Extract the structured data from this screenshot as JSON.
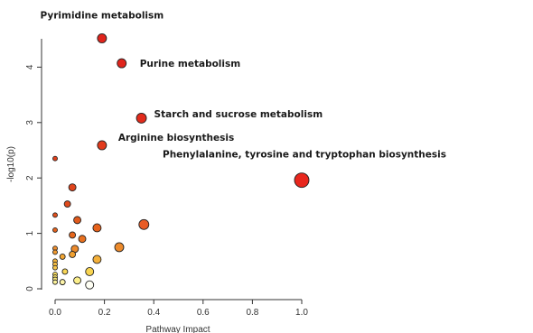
{
  "chart_data": {
    "type": "scatter",
    "title": "",
    "xlabel": "Pathway Impact",
    "ylabel": "-log10(p)",
    "xlim": [
      0,
      1
    ],
    "ylim": [
      0,
      4.5
    ],
    "x_ticks": [
      "0.0",
      "0.2",
      "0.4",
      "0.6",
      "0.8",
      "1.0"
    ],
    "y_ticks": [
      "0",
      "1",
      "2",
      "3",
      "4"
    ],
    "grid": false,
    "points": [
      {
        "x": 0.19,
        "y": 4.52,
        "size": 5,
        "color": "#e0241c",
        "label": "Pyrimidine metabolism"
      },
      {
        "x": 0.27,
        "y": 4.07,
        "size": 5,
        "color": "#e0241c",
        "label": "Purine metabolism"
      },
      {
        "x": 0.35,
        "y": 3.08,
        "size": 5.5,
        "color": "#e22b1c",
        "label": "Starch and sucrose metabolism"
      },
      {
        "x": 0.19,
        "y": 2.59,
        "size": 5,
        "color": "#e23a1c",
        "label": "Arginine biosynthesis"
      },
      {
        "x": 1.0,
        "y": 1.96,
        "size": 8,
        "color": "#e8261d",
        "label": "Phenylalanine, tyrosine and tryptophan biosynthesis"
      },
      {
        "x": 0.0,
        "y": 2.35,
        "size": 2.5,
        "color": "#e0401c",
        "label": ""
      },
      {
        "x": 0.07,
        "y": 1.83,
        "size": 4,
        "color": "#e0441c",
        "label": ""
      },
      {
        "x": 0.05,
        "y": 1.53,
        "size": 3.5,
        "color": "#e04a1c",
        "label": ""
      },
      {
        "x": 0.0,
        "y": 1.33,
        "size": 2.5,
        "color": "#e0501c",
        "label": ""
      },
      {
        "x": 0.09,
        "y": 1.24,
        "size": 4,
        "color": "#e05a1c",
        "label": ""
      },
      {
        "x": 0.36,
        "y": 1.16,
        "size": 5.5,
        "color": "#e85c26",
        "label": ""
      },
      {
        "x": 0.17,
        "y": 1.1,
        "size": 4.5,
        "color": "#e6621c",
        "label": ""
      },
      {
        "x": 0.07,
        "y": 0.97,
        "size": 3.5,
        "color": "#e6661c",
        "label": ""
      },
      {
        "x": 0.11,
        "y": 0.9,
        "size": 4,
        "color": "#e8701e",
        "label": ""
      },
      {
        "x": 0.0,
        "y": 1.06,
        "size": 2.5,
        "color": "#e4621c",
        "label": ""
      },
      {
        "x": 0.26,
        "y": 0.75,
        "size": 5,
        "color": "#ec8a2c",
        "label": ""
      },
      {
        "x": 0.08,
        "y": 0.72,
        "size": 4,
        "color": "#ec8a2c",
        "label": ""
      },
      {
        "x": 0.0,
        "y": 0.73,
        "size": 2.5,
        "color": "#ee8e2e",
        "label": ""
      },
      {
        "x": 0.0,
        "y": 0.66,
        "size": 2.5,
        "color": "#f09a30",
        "label": ""
      },
      {
        "x": 0.07,
        "y": 0.62,
        "size": 3.5,
        "color": "#f0a030",
        "label": ""
      },
      {
        "x": 0.03,
        "y": 0.58,
        "size": 3,
        "color": "#f2a634",
        "label": ""
      },
      {
        "x": 0.17,
        "y": 0.53,
        "size": 4.5,
        "color": "#f4b03a",
        "label": ""
      },
      {
        "x": 0.0,
        "y": 0.5,
        "size": 2.5,
        "color": "#f4b440",
        "label": ""
      },
      {
        "x": 0.0,
        "y": 0.44,
        "size": 2.5,
        "color": "#f6be44",
        "label": ""
      },
      {
        "x": 0.0,
        "y": 0.38,
        "size": 2.5,
        "color": "#f6c64c",
        "label": ""
      },
      {
        "x": 0.14,
        "y": 0.31,
        "size": 4.5,
        "color": "#f8d450",
        "label": ""
      },
      {
        "x": 0.04,
        "y": 0.31,
        "size": 3,
        "color": "#f8d656",
        "label": ""
      },
      {
        "x": 0.0,
        "y": 0.26,
        "size": 2.5,
        "color": "#f8dc5c",
        "label": ""
      },
      {
        "x": 0.0,
        "y": 0.21,
        "size": 2.5,
        "color": "#fae46a",
        "label": ""
      },
      {
        "x": 0.0,
        "y": 0.17,
        "size": 2.5,
        "color": "#faea78",
        "label": ""
      },
      {
        "x": 0.09,
        "y": 0.15,
        "size": 4,
        "color": "#fbee8a",
        "label": ""
      },
      {
        "x": 0.0,
        "y": 0.12,
        "size": 2.5,
        "color": "#fcf29a",
        "label": ""
      },
      {
        "x": 0.03,
        "y": 0.12,
        "size": 3,
        "color": "#fdf4a8",
        "label": ""
      },
      {
        "x": 0.14,
        "y": 0.07,
        "size": 4.5,
        "color": "#fffff4",
        "label": ""
      }
    ]
  }
}
